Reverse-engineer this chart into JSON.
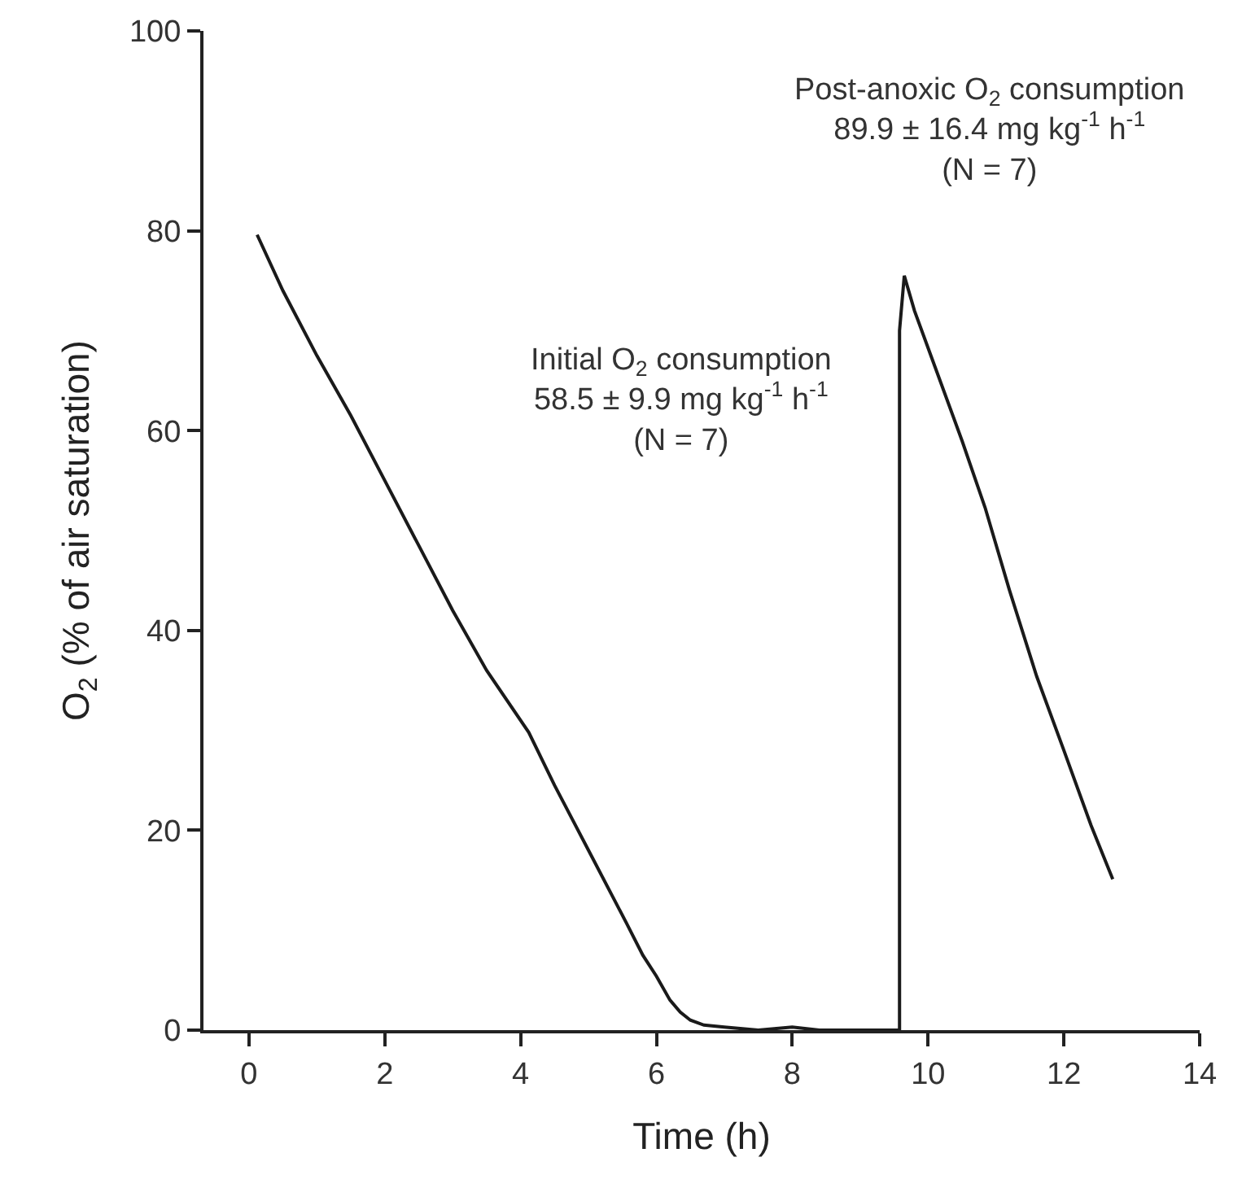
{
  "chart_data": {
    "type": "line",
    "xlabel": "Time (h)",
    "ylabel": "O$_{2}$ (% of air saturation)",
    "series": [
      {
        "color": "#1a1a1a",
        "x": [
          0.12,
          0.5,
          1,
          1.5,
          2,
          2.5,
          3,
          3.5,
          4.12,
          4.5,
          5,
          5.56,
          5.8,
          6,
          6.2,
          6.35,
          6.5,
          6.7,
          7,
          7.5,
          8,
          8.4,
          9,
          9.58,
          9.58,
          9.65,
          9.8,
          10.08,
          10.5,
          10.84,
          11.2,
          11.6,
          12,
          12.4,
          12.72
        ],
        "values": [
          79.6,
          74,
          67.5,
          61.5,
          55,
          48.5,
          42,
          36,
          29.8,
          24.5,
          18,
          10.7,
          7.5,
          5.4,
          3,
          1.8,
          1,
          0.5,
          0.3,
          0,
          0.3,
          0,
          0,
          0,
          70,
          75.5,
          72,
          66.8,
          59,
          52.3,
          44,
          35.4,
          28,
          20.5,
          15.1
        ]
      }
    ],
    "xlim": [
      -0.67,
      14
    ],
    "xticks": [
      0,
      2,
      4,
      6,
      8,
      10,
      12,
      14
    ],
    "ylim": [
      0,
      100
    ],
    "yticks": [
      0,
      20,
      40,
      60,
      80,
      100
    ],
    "grid": false,
    "marker": "none",
    "line_style": "solid",
    "annotations": [
      "Initial O$_{2}$ consumption\n58.5 ± 9.9 mg kg$^{-1}$ h$^{-1}$\n(N = 7)",
      "Post-anoxic O$_{2}$ consumption\n89.9 ± 16.4 mg kg$^{-1}$ h$^{-1}$\n(N = 7)"
    ]
  }
}
